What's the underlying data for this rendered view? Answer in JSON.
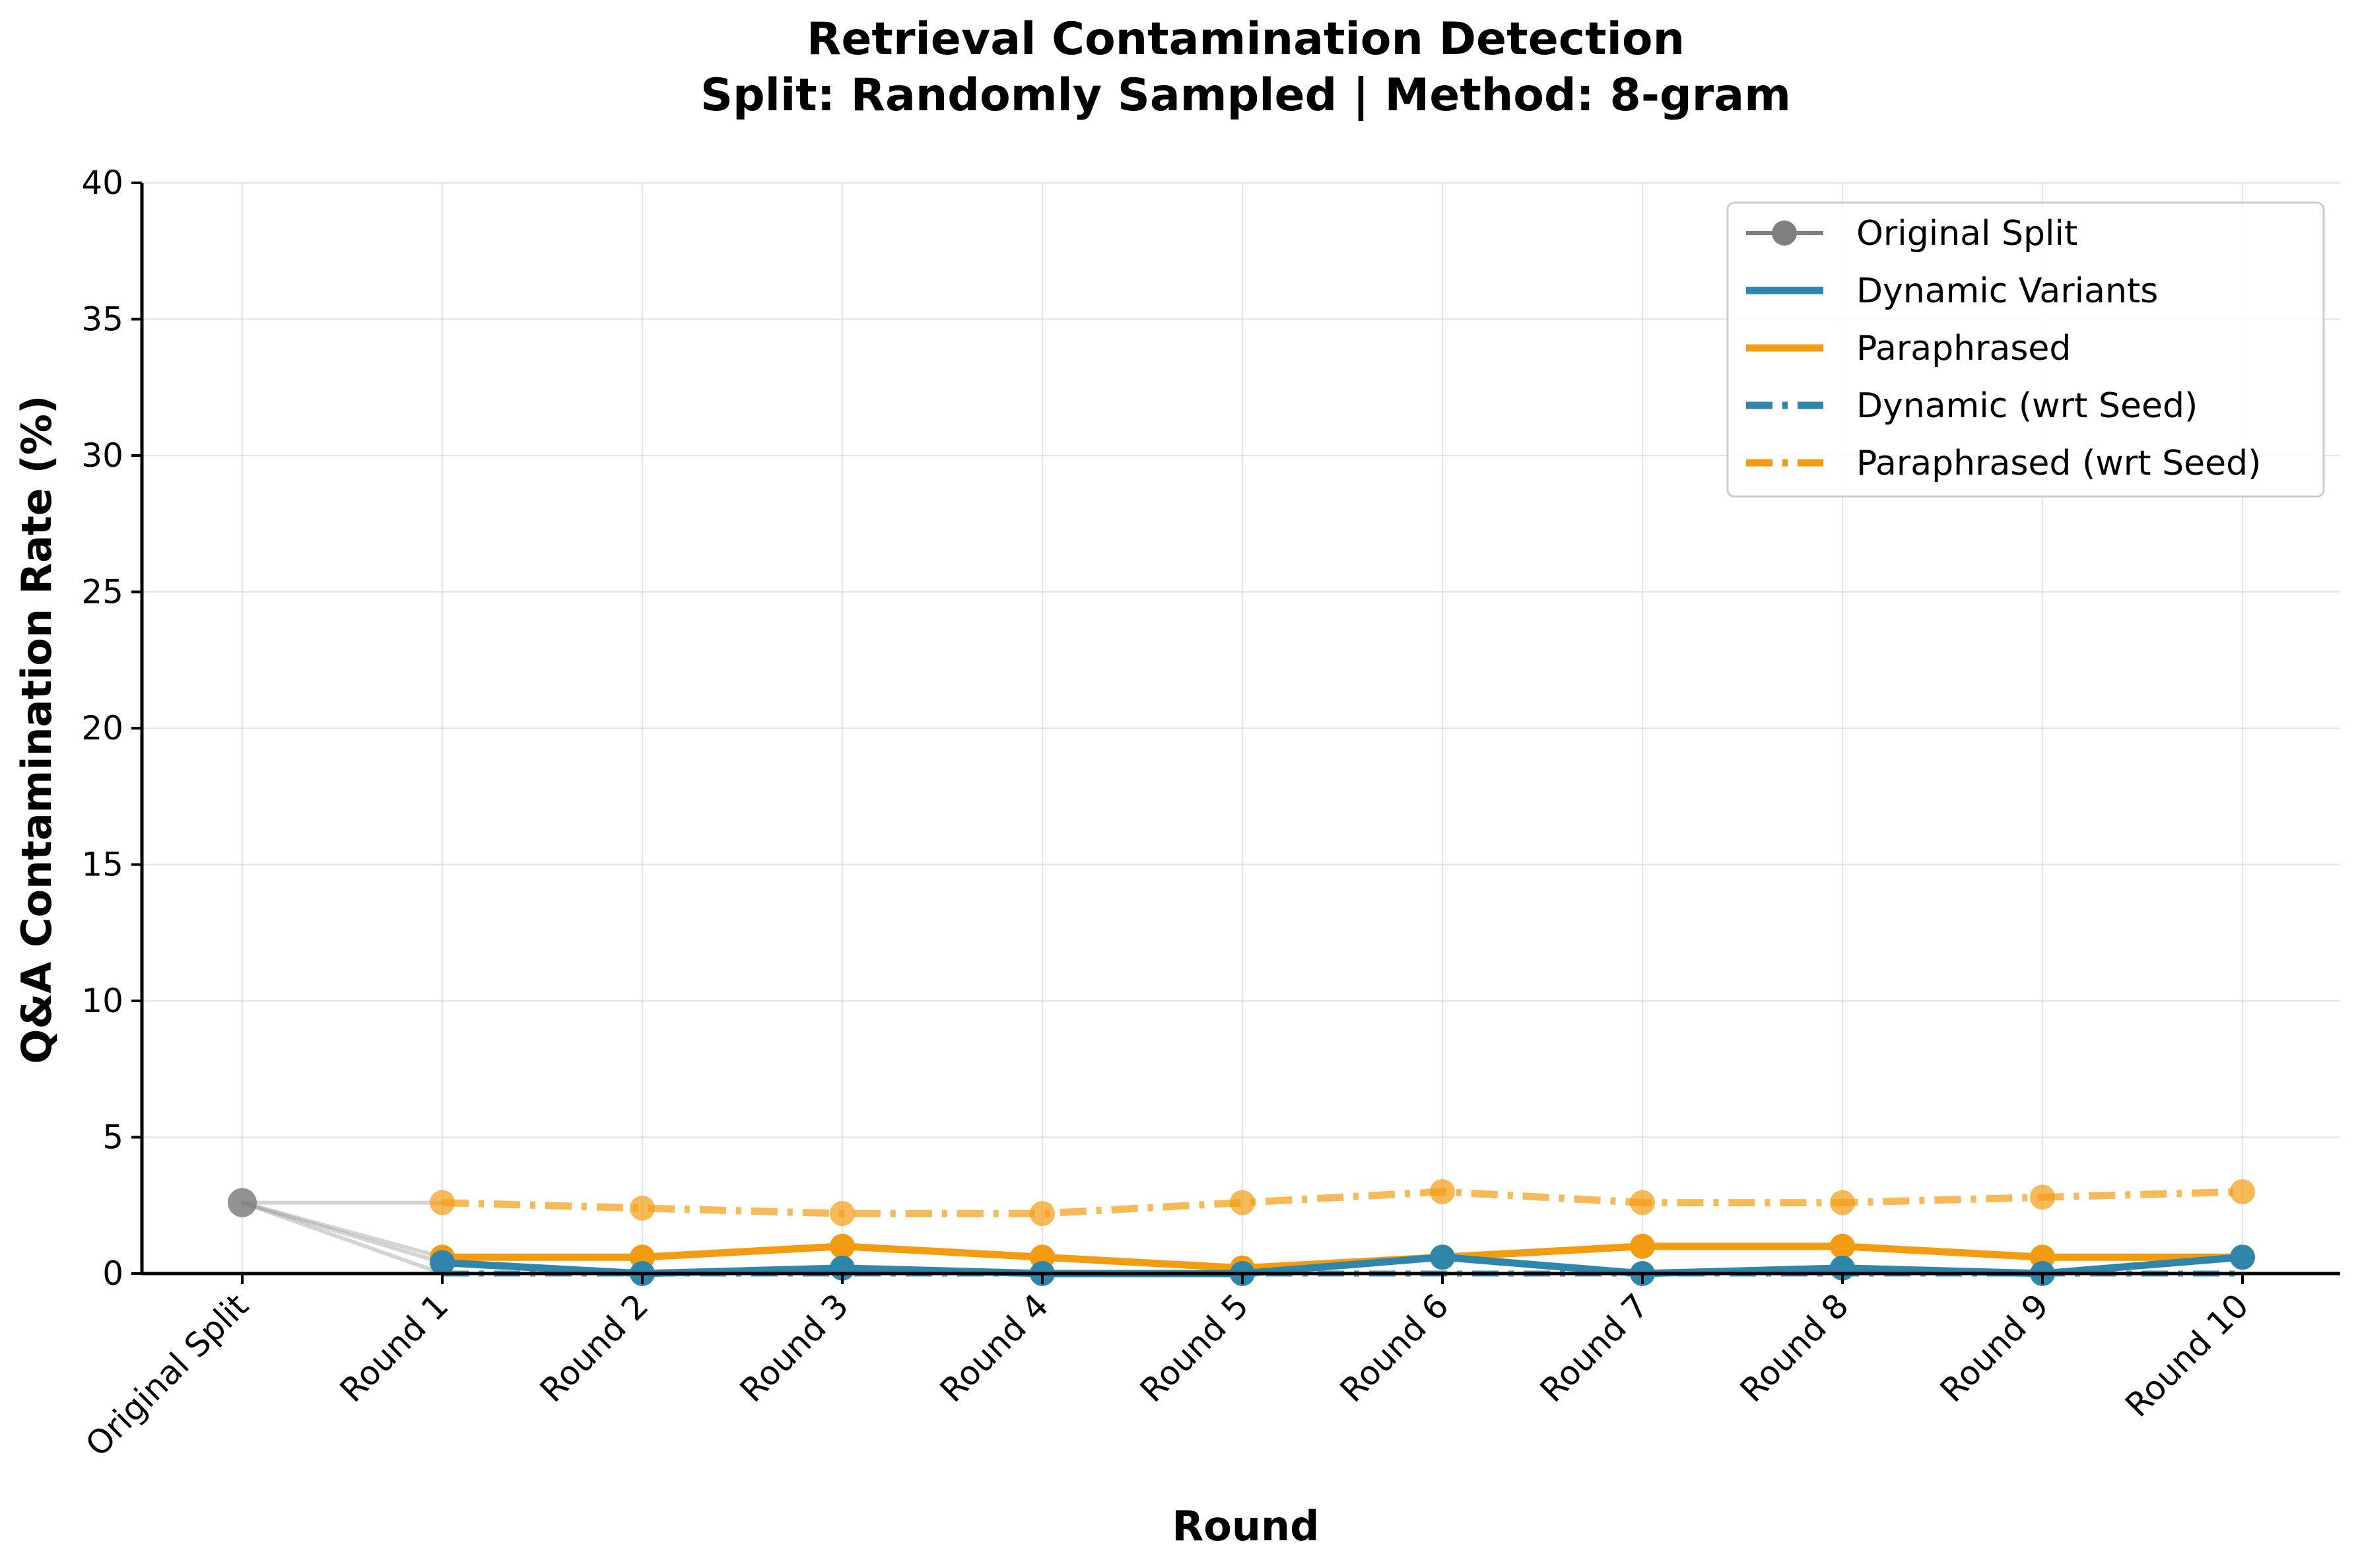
{
  "chart_data": {
    "type": "line",
    "title": "Retrieval Contamination Detection",
    "subtitle": "Split: Randomly Sampled | Method: 8-gram",
    "xlabel": "Round",
    "ylabel": "Q&A Contamination Rate (%)",
    "ylim": [
      0,
      40
    ],
    "yticks": [
      0,
      5,
      10,
      15,
      20,
      25,
      30,
      35,
      40
    ],
    "grid": true,
    "legend_position": "top-right",
    "categories": [
      "Original Split",
      "Round 1",
      "Round 2",
      "Round 3",
      "Round 4",
      "Round 5",
      "Round 6",
      "Round 7",
      "Round 8",
      "Round 9",
      "Round 10"
    ],
    "original_value": 2.6,
    "series": [
      {
        "name": "Original Split",
        "color": "#7f7f7f",
        "style": "solid-marker",
        "values": [
          2.6,
          null,
          null,
          null,
          null,
          null,
          null,
          null,
          null,
          null,
          null
        ]
      },
      {
        "name": "Dynamic Variants",
        "color": "#2e86ab",
        "style": "solid",
        "values": [
          2.6,
          0.4,
          0.0,
          0.2,
          0.0,
          0.0,
          0.6,
          0.0,
          0.2,
          0.0,
          0.6
        ]
      },
      {
        "name": "Paraphrased",
        "color": "#f39c12",
        "style": "solid",
        "values": [
          2.6,
          0.6,
          0.6,
          1.0,
          0.6,
          0.2,
          0.6,
          1.0,
          1.0,
          0.6,
          0.6
        ]
      },
      {
        "name": "Dynamic (wrt Seed)",
        "color": "#2e86ab",
        "style": "dashdot",
        "values": [
          2.6,
          0.0,
          0.0,
          0.0,
          0.0,
          0.0,
          0.0,
          0.0,
          0.0,
          0.0,
          0.0
        ]
      },
      {
        "name": "Paraphrased (wrt Seed)",
        "color": "#f39c12",
        "style": "dashdot",
        "values": [
          2.6,
          2.6,
          2.4,
          2.2,
          2.2,
          2.6,
          3.0,
          2.6,
          2.6,
          2.8,
          3.0
        ]
      }
    ]
  }
}
